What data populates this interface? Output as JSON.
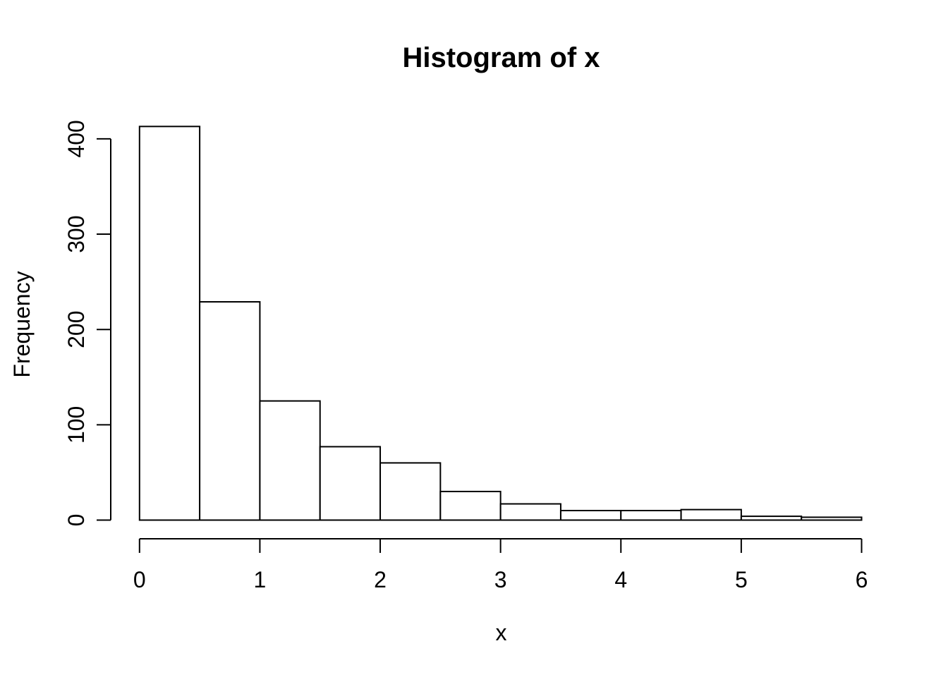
{
  "figure": {
    "background": "#ffffff",
    "foreground": "#000000"
  },
  "chart_data": {
    "type": "bar",
    "subtype": "histogram",
    "title": "Histogram of x",
    "xlabel": "x",
    "ylabel": "Frequency",
    "bin_edges": [
      0,
      0.5,
      1,
      1.5,
      2,
      2.5,
      3,
      3.5,
      4,
      4.5,
      5,
      5.5,
      6
    ],
    "counts": [
      413,
      229,
      125,
      77,
      60,
      30,
      17,
      10,
      10,
      11,
      4,
      3
    ],
    "x_ticks": [
      0,
      1,
      2,
      3,
      4,
      5,
      6
    ],
    "y_ticks": [
      0,
      100,
      200,
      300,
      400
    ],
    "xlim": [
      0,
      6
    ],
    "ylim": [
      0,
      413
    ],
    "grid": false,
    "legend": null,
    "bar_fill": "#ffffff",
    "bar_stroke": "#000000",
    "axis_color": "#000000"
  }
}
